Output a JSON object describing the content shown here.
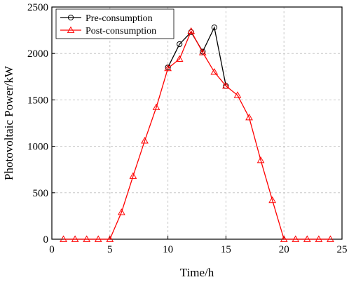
{
  "chart_data": {
    "type": "line",
    "xlabel": "Time/h",
    "ylabel": "Photovoltaic Power/kW",
    "xlim": [
      0,
      25
    ],
    "ylim": [
      0,
      2500
    ],
    "xticks": [
      0,
      5,
      10,
      15,
      20,
      25
    ],
    "yticks": [
      0,
      500,
      1000,
      1500,
      2000,
      2500
    ],
    "grid": true,
    "grid_style": "dashed",
    "legend_position": "top-left",
    "series": [
      {
        "name": "Pre-consumption",
        "color": "#000000",
        "marker": "circle",
        "x": [
          10,
          11,
          12,
          13,
          14,
          15
        ],
        "y": [
          1850,
          2100,
          2230,
          2020,
          2280,
          1650
        ]
      },
      {
        "name": "Post-consumption",
        "color": "#ff0000",
        "marker": "triangle",
        "x": [
          1,
          2,
          3,
          4,
          5,
          6,
          7,
          8,
          9,
          10,
          11,
          12,
          13,
          14,
          15,
          16,
          17,
          18,
          19,
          20,
          21,
          22,
          23,
          24
        ],
        "y": [
          0,
          0,
          0,
          0,
          0,
          290,
          680,
          1060,
          1420,
          1840,
          1940,
          2240,
          2010,
          1800,
          1650,
          1550,
          1310,
          850,
          420,
          0,
          0,
          0,
          0,
          0
        ]
      }
    ]
  }
}
